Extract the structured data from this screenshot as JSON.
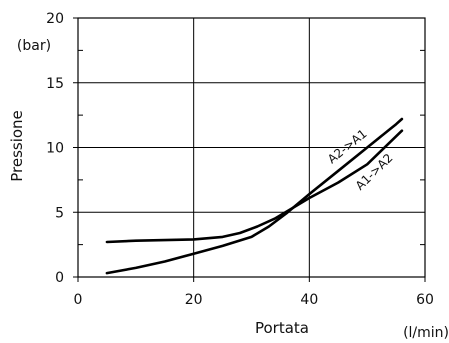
{
  "chart_data": {
    "type": "line",
    "xlabel": "Portata",
    "xunit": "(l/min)",
    "ylabel": "Pressione",
    "yunit": "(bar)",
    "xlim": [
      0,
      60
    ],
    "ylim": [
      0,
      20
    ],
    "xticks": [
      "0",
      "20",
      "40",
      "60"
    ],
    "yticks": [
      "0",
      "5",
      "10",
      "15",
      "20"
    ],
    "grid": true,
    "series": [
      {
        "name": "A2->A1",
        "points": [
          [
            5,
            0.3
          ],
          [
            10,
            0.7
          ],
          [
            15,
            1.2
          ],
          [
            20,
            1.8
          ],
          [
            25,
            2.4
          ],
          [
            30,
            3.1
          ],
          [
            33,
            3.9
          ],
          [
            36,
            4.9
          ],
          [
            40,
            6.4
          ],
          [
            45,
            8.2
          ],
          [
            50,
            10.0
          ],
          [
            55,
            11.8
          ],
          [
            56,
            12.2
          ]
        ]
      },
      {
        "name": "A1->A2",
        "points": [
          [
            5,
            2.7
          ],
          [
            10,
            2.8
          ],
          [
            15,
            2.85
          ],
          [
            20,
            2.9
          ],
          [
            25,
            3.1
          ],
          [
            28,
            3.4
          ],
          [
            31,
            3.9
          ],
          [
            34,
            4.5
          ],
          [
            37,
            5.3
          ],
          [
            40,
            6.1
          ],
          [
            45,
            7.3
          ],
          [
            50,
            8.7
          ],
          [
            56,
            11.3
          ]
        ]
      }
    ]
  }
}
